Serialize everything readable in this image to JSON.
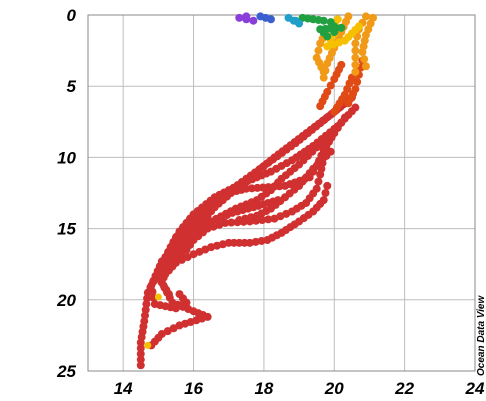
{
  "chart_data": {
    "type": "scatter",
    "title": "",
    "xlabel": "",
    "ylabel": "",
    "xlim": [
      13,
      24
    ],
    "ylim": [
      25,
      0
    ],
    "y_inverted": true,
    "grid": true,
    "x_ticks": [
      14,
      16,
      18,
      20,
      22,
      24
    ],
    "y_ticks": [
      0,
      5,
      10,
      15,
      20,
      25
    ],
    "x_tick_labels": [
      "14",
      "16",
      "18",
      "20",
      "22",
      "24"
    ],
    "y_tick_labels": [
      "0",
      "5",
      "10",
      "15",
      "20",
      "25"
    ],
    "watermark": "Ocean Data View",
    "colors": {
      "deep": "#d03030",
      "mid": "#e04a14",
      "upper": "#f09a18",
      "surface_yellow": "#f6c000",
      "green": "#20a040",
      "cyan": "#20a0c8",
      "blue": "#3a60d0",
      "violet": "#8a40d8"
    },
    "profiles": [
      {
        "color_group": "deep",
        "points": [
          [
            20.5,
            5.8
          ],
          [
            19.9,
            7.0
          ],
          [
            19.1,
            8.5
          ],
          [
            18.3,
            10.0
          ],
          [
            17.3,
            12.0
          ],
          [
            16.6,
            13.5
          ],
          [
            16.0,
            15.2
          ],
          [
            15.4,
            16.6
          ],
          [
            15.0,
            18.0
          ],
          [
            14.7,
            19.5
          ],
          [
            14.6,
            21.5
          ],
          [
            14.5,
            23.0
          ],
          [
            14.5,
            24.6
          ]
        ]
      },
      {
        "color_group": "deep",
        "points": [
          [
            20.3,
            6.2
          ],
          [
            19.6,
            7.6
          ],
          [
            18.9,
            9.0
          ],
          [
            18.0,
            10.6
          ],
          [
            17.0,
            12.4
          ],
          [
            16.2,
            14.2
          ],
          [
            15.6,
            15.8
          ],
          [
            15.1,
            17.3
          ],
          [
            14.8,
            19.0
          ],
          [
            14.9,
            20.3
          ],
          [
            15.5,
            20.6
          ],
          [
            15.8,
            20.2
          ],
          [
            15.6,
            19.6
          ]
        ]
      },
      {
        "color_group": "deep",
        "points": [
          [
            20.6,
            6.5
          ],
          [
            20.1,
            7.8
          ],
          [
            19.5,
            9.3
          ],
          [
            19.0,
            10.5
          ],
          [
            18.5,
            11.5
          ],
          [
            18.2,
            12.3
          ],
          [
            17.8,
            13.0
          ],
          [
            17.2,
            13.6
          ],
          [
            16.5,
            14.5
          ],
          [
            15.9,
            16.0
          ],
          [
            15.3,
            17.4
          ],
          [
            15.1,
            18.8
          ],
          [
            15.4,
            20.2
          ],
          [
            16.0,
            20.8
          ],
          [
            16.4,
            21.2
          ],
          [
            15.6,
            21.8
          ],
          [
            15.1,
            22.4
          ],
          [
            14.8,
            23.2
          ]
        ]
      },
      {
        "color_group": "deep",
        "points": [
          [
            20.3,
            7.2
          ],
          [
            20.0,
            8.3
          ],
          [
            19.7,
            9.5
          ],
          [
            19.5,
            10.6
          ],
          [
            19.3,
            11.4
          ],
          [
            18.6,
            12.0
          ],
          [
            17.5,
            12.2
          ],
          [
            16.8,
            12.6
          ],
          [
            16.4,
            13.3
          ],
          [
            15.9,
            14.4
          ],
          [
            15.5,
            15.6
          ],
          [
            15.2,
            17.0
          ],
          [
            15.0,
            18.4
          ],
          [
            15.3,
            19.6
          ]
        ]
      },
      {
        "color_group": "deep",
        "points": [
          [
            20.0,
            8.0
          ],
          [
            19.4,
            9.2
          ],
          [
            18.8,
            10.2
          ],
          [
            18.2,
            11.0
          ],
          [
            17.4,
            11.8
          ],
          [
            16.6,
            12.8
          ],
          [
            16.0,
            14.0
          ],
          [
            15.6,
            15.2
          ],
          [
            15.3,
            16.6
          ],
          [
            15.1,
            17.8
          ]
        ]
      },
      {
        "color_group": "deep",
        "points": [
          [
            19.8,
            8.8
          ],
          [
            19.7,
            10.0
          ],
          [
            19.6,
            11.2
          ],
          [
            19.5,
            12.2
          ],
          [
            19.2,
            13.2
          ],
          [
            18.8,
            13.8
          ],
          [
            18.3,
            14.3
          ],
          [
            17.6,
            14.5
          ],
          [
            16.9,
            14.6
          ],
          [
            16.4,
            15.0
          ],
          [
            16.0,
            15.8
          ],
          [
            15.8,
            16.5
          ],
          [
            15.5,
            17.2
          ]
        ]
      },
      {
        "color_group": "deep",
        "points": [
          [
            19.9,
            9.6
          ],
          [
            19.4,
            10.8
          ],
          [
            19.0,
            12.0
          ],
          [
            18.6,
            12.8
          ],
          [
            18.2,
            13.6
          ],
          [
            17.8,
            14.1
          ],
          [
            17.3,
            14.4
          ]
        ]
      },
      {
        "color_group": "deep",
        "points": [
          [
            19.8,
            12.0
          ],
          [
            19.7,
            13.0
          ],
          [
            19.4,
            13.8
          ],
          [
            19.0,
            14.5
          ],
          [
            18.5,
            15.3
          ],
          [
            18.1,
            15.8
          ],
          [
            17.6,
            16.0
          ],
          [
            17.0,
            16.0
          ],
          [
            16.5,
            16.3
          ],
          [
            16.0,
            16.8
          ],
          [
            15.5,
            17.4
          ],
          [
            15.2,
            18.2
          ]
        ]
      },
      {
        "color_group": "deep",
        "points": [
          [
            18.4,
            13.0
          ],
          [
            17.7,
            13.5
          ],
          [
            17.1,
            13.9
          ],
          [
            16.5,
            14.5
          ],
          [
            16.0,
            15.3
          ],
          [
            15.6,
            16.2
          ],
          [
            15.3,
            17.2
          ]
        ]
      },
      {
        "color_group": "mid",
        "points": [
          [
            20.8,
            3.2
          ],
          [
            20.7,
            4.2
          ],
          [
            20.6,
            5.2
          ],
          [
            20.4,
            6.2
          ]
        ]
      },
      {
        "color_group": "mid",
        "points": [
          [
            20.2,
            3.5
          ],
          [
            20.0,
            4.5
          ],
          [
            19.8,
            5.4
          ],
          [
            19.6,
            6.4
          ]
        ]
      },
      {
        "color_group": "mid",
        "points": [
          [
            20.5,
            4.4
          ],
          [
            20.3,
            5.6
          ],
          [
            20.0,
            6.8
          ]
        ]
      },
      {
        "color_group": "upper",
        "points": [
          [
            20.9,
            0.1
          ],
          [
            20.7,
            1.0
          ],
          [
            20.6,
            2.0
          ],
          [
            20.6,
            3.0
          ],
          [
            20.6,
            4.0
          ]
        ]
      },
      {
        "color_group": "upper",
        "points": [
          [
            20.4,
            0.1
          ],
          [
            20.2,
            1.2
          ],
          [
            20.0,
            2.3
          ],
          [
            19.8,
            3.4
          ],
          [
            19.7,
            4.4
          ]
        ]
      },
      {
        "color_group": "upper",
        "points": [
          [
            21.1,
            0.2
          ],
          [
            20.9,
            1.4
          ],
          [
            20.8,
            2.6
          ],
          [
            20.9,
            3.6
          ]
        ]
      },
      {
        "color_group": "upper",
        "points": [
          [
            19.8,
            1.0
          ],
          [
            19.6,
            2.0
          ],
          [
            19.5,
            3.0
          ],
          [
            19.7,
            4.0
          ]
        ]
      },
      {
        "color_group": "surface_yellow",
        "points": [
          [
            20.1,
            0.3
          ],
          [
            20.0,
            1.3
          ],
          [
            19.8,
            2.2
          ],
          [
            20.3,
            1.8
          ],
          [
            20.7,
            0.8
          ]
        ]
      },
      {
        "color_group": "green",
        "points": [
          [
            19.1,
            0.2
          ],
          [
            19.4,
            0.3
          ],
          [
            19.7,
            0.4
          ],
          [
            19.9,
            0.5
          ],
          [
            20.0,
            0.8
          ],
          [
            20.0,
            1.2
          ],
          [
            19.8,
            1.5
          ],
          [
            19.6,
            1.0
          ],
          [
            20.2,
            0.9
          ]
        ]
      },
      {
        "color_group": "cyan",
        "points": [
          [
            18.7,
            0.2
          ],
          [
            19.0,
            0.6
          ],
          [
            18.9,
            0.4
          ]
        ]
      },
      {
        "color_group": "blue",
        "points": [
          [
            18.2,
            0.3
          ],
          [
            17.9,
            0.1
          ]
        ]
      },
      {
        "color_group": "violet",
        "points": [
          [
            17.5,
            0.1
          ],
          [
            17.3,
            0.2
          ],
          [
            17.7,
            0.4
          ]
        ]
      }
    ],
    "highlight_points": [
      {
        "color_group": "surface_yellow",
        "x": 15.0,
        "y": 19.8
      },
      {
        "color_group": "surface_yellow",
        "x": 14.7,
        "y": 23.2
      }
    ]
  }
}
